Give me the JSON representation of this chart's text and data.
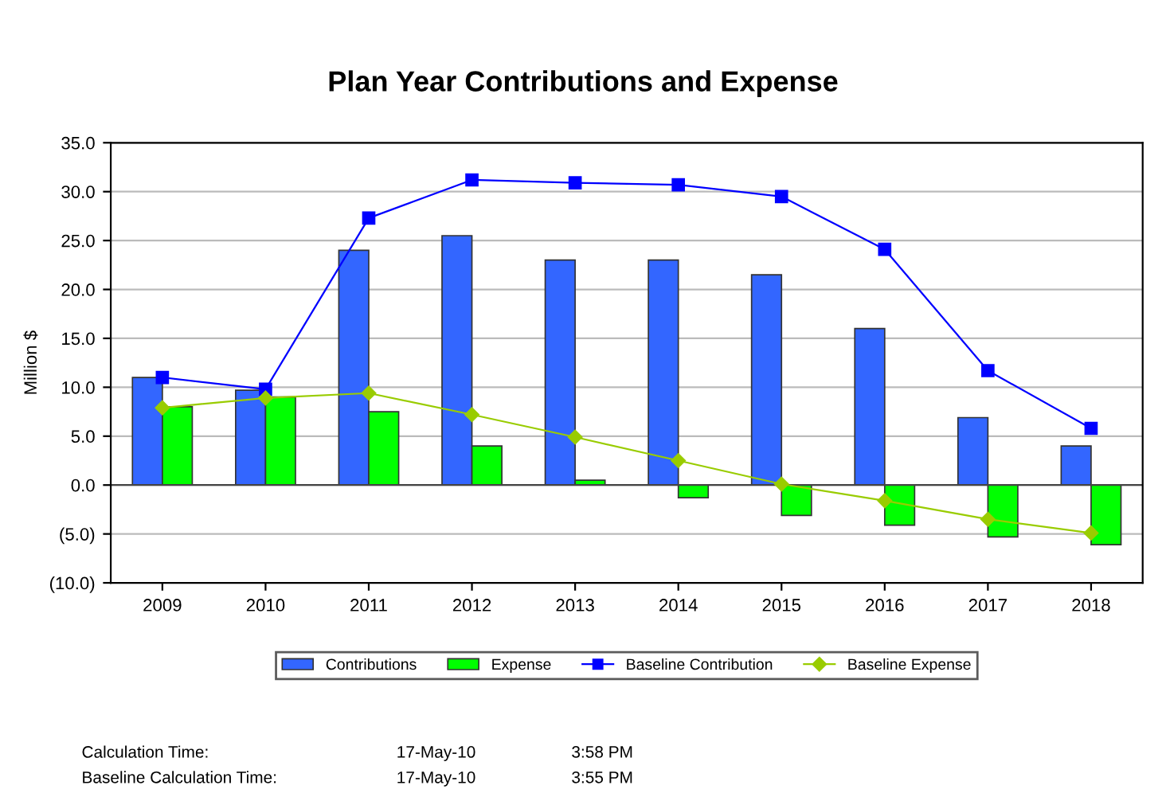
{
  "chart_data": {
    "type": "bar",
    "title": "Plan Year Contributions and Expense",
    "ylabel": "Million $",
    "categories": [
      "2009",
      "2010",
      "2011",
      "2012",
      "2013",
      "2014",
      "2015",
      "2016",
      "2017",
      "2018"
    ],
    "series": [
      {
        "name": "Contributions",
        "color": "#3366ff",
        "values": [
          11.0,
          9.7,
          24.0,
          25.5,
          23.0,
          23.0,
          21.5,
          16.0,
          6.9,
          4.0
        ]
      },
      {
        "name": "Expense",
        "color": "#00ff00",
        "values": [
          8.0,
          9.0,
          7.5,
          4.0,
          0.5,
          -1.3,
          -3.1,
          -4.1,
          -5.3,
          -6.1
        ]
      },
      {
        "name": "Baseline Contribution",
        "type": "line",
        "color": "#0000ff",
        "marker": "square",
        "values": [
          11.0,
          9.8,
          27.3,
          31.2,
          30.9,
          30.7,
          29.5,
          24.1,
          11.7,
          5.8
        ]
      },
      {
        "name": "Baseline Expense",
        "type": "line",
        "color": "#99cc00",
        "marker": "diamond",
        "values": [
          7.9,
          8.9,
          9.4,
          7.2,
          4.9,
          2.5,
          0.1,
          -1.6,
          -3.5,
          -4.9
        ]
      }
    ],
    "ylim": [
      -10,
      35
    ],
    "yticks": [
      {
        "value": -10,
        "label": "(10.0)"
      },
      {
        "value": -5,
        "label": "(5.0)"
      },
      {
        "value": 0,
        "label": "0.0"
      },
      {
        "value": 5,
        "label": "5.0"
      },
      {
        "value": 10,
        "label": "10.0"
      },
      {
        "value": 15,
        "label": "15.0"
      },
      {
        "value": 20,
        "label": "20.0"
      },
      {
        "value": 25,
        "label": "25.0"
      },
      {
        "value": 30,
        "label": "30.0"
      },
      {
        "value": 35,
        "label": "35.0"
      }
    ],
    "grid": "y",
    "legend": "bottom",
    "line_style": "solid",
    "annotations": [
      "Calculation Time:",
      "17-May-10",
      "3:58 PM",
      "Baseline Calculation Time:",
      "17-May-10",
      "3:55 PM"
    ]
  }
}
